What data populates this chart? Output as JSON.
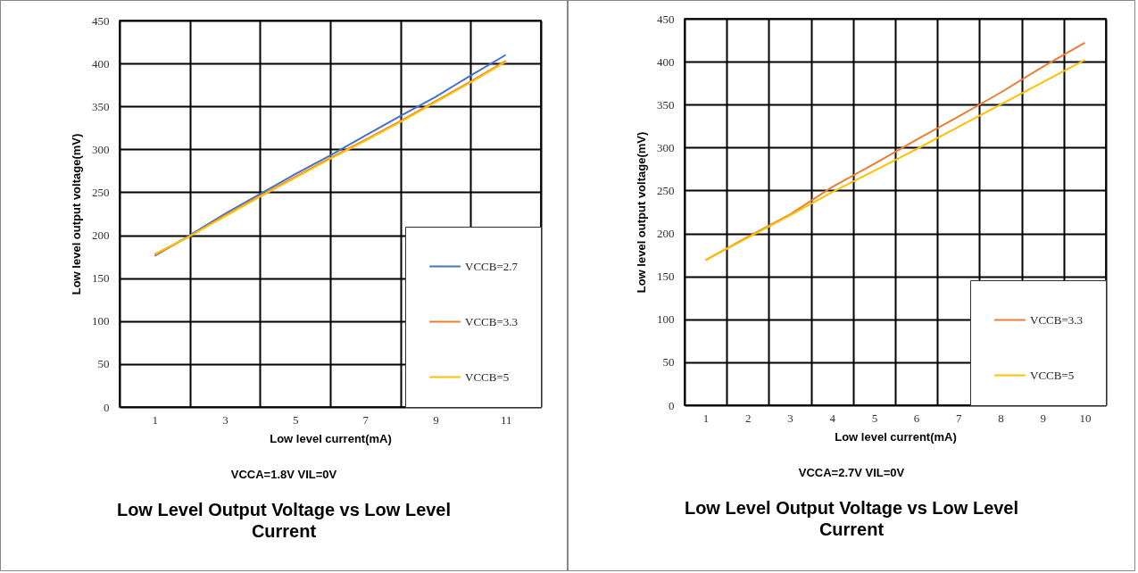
{
  "chart_data": [
    {
      "type": "line",
      "title": "Low Level Output Voltage vs Low Level Current",
      "xlabel": "Low level current(mA)",
      "ylabel": "Low level output voltage(mV)",
      "annotations": [
        "VCCA=1.8V VIL=0V"
      ],
      "x": [
        1,
        2,
        3,
        4,
        5,
        6,
        7,
        8,
        9,
        10,
        11
      ],
      "series": [
        {
          "name": "VCCB=2.7",
          "color": "#4472c4",
          "values": [
            176,
            200,
            225,
            248,
            271,
            293,
            316,
            339,
            361,
            386,
            410
          ]
        },
        {
          "name": "VCCB=3.3",
          "color": "#ed7d31",
          "values": [
            177,
            199,
            223,
            246,
            268,
            290,
            311,
            333,
            356,
            379,
            403
          ]
        },
        {
          "name": "VCCB=5",
          "color": "#ffc000",
          "values": [
            178,
            199,
            222,
            245,
            267,
            289,
            310,
            332,
            355,
            378,
            402
          ]
        }
      ],
      "xlim": [
        0,
        12
      ],
      "ylim": [
        0,
        450
      ],
      "xticks": [
        {
          "value": 0,
          "label": null
        },
        1,
        {
          "value": 2,
          "label": null
        },
        3,
        {
          "value": 4,
          "label": null
        },
        5,
        {
          "value": 6,
          "label": null
        },
        7,
        {
          "value": 8,
          "label": null
        },
        9,
        {
          "value": 10,
          "label": null
        },
        11,
        {
          "value": 12,
          "label": null
        }
      ],
      "yticks": [
        0,
        50,
        100,
        150,
        200,
        250,
        300,
        350,
        400,
        450
      ],
      "grid": true,
      "legend": "bottom right"
    },
    {
      "type": "line",
      "title": "Low Level Output Voltage vs Low Level Current",
      "xlabel": "Low level current(mA)",
      "ylabel": "Low level output voltage(mV)",
      "annotations": [
        "VCCA=2.7V VIL=0V"
      ],
      "x": [
        1,
        2,
        3,
        4,
        5,
        6,
        7,
        8,
        9,
        10
      ],
      "series": [
        {
          "name": "VCCB=3.3",
          "color": "#ed7d31",
          "values": [
            169,
            196,
            222,
            254,
            281,
            309,
            336,
            364,
            394,
            422
          ]
        },
        {
          "name": "VCCB=5",
          "color": "#ffc000",
          "values": [
            169,
            195,
            221,
            248,
            273,
            298,
            324,
            350,
            376,
            402
          ]
        }
      ],
      "xlim": [
        0.5,
        10.5
      ],
      "ylim": [
        0,
        450
      ],
      "xticks": [
        {
          "value": 0.5,
          "label": null
        },
        1,
        {
          "value": 1.5,
          "label": null
        },
        2,
        {
          "value": 2.5,
          "label": null
        },
        3,
        {
          "value": 3.5,
          "label": null
        },
        4,
        {
          "value": 4.5,
          "label": null
        },
        5,
        {
          "value": 5.5,
          "label": null
        },
        6,
        {
          "value": 6.5,
          "label": null
        },
        7,
        {
          "value": 7.5,
          "label": null
        },
        8,
        {
          "value": 8.5,
          "label": null
        },
        9,
        {
          "value": 9.5,
          "label": null
        },
        10,
        {
          "value": 10.5,
          "label": null
        }
      ],
      "yticks": [
        0,
        50,
        100,
        150,
        200,
        250,
        300,
        350,
        400,
        450
      ],
      "grid": true,
      "legend": "bottom right"
    }
  ]
}
